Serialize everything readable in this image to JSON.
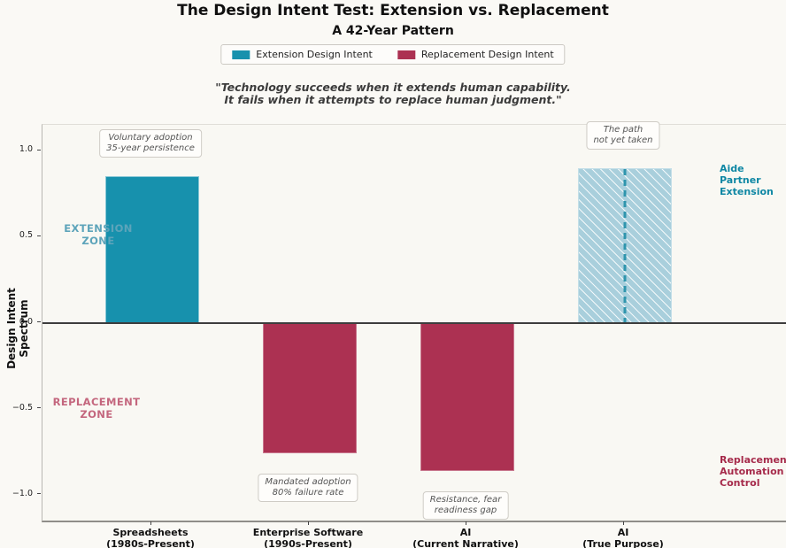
{
  "title": "The Design Intent Test: Extension vs. Replacement",
  "subtitle": "A 42-Year Pattern",
  "legend": {
    "extension": "Extension Design Intent",
    "replacement": "Replacement Design Intent"
  },
  "quote": {
    "line1": "\"Technology succeeds when it extends human capability.",
    "line2": "It fails when it attempts to replace human judgment.\""
  },
  "zones": {
    "extension": [
      "EXTENSION",
      "ZONE"
    ],
    "replacement": [
      "REPLACEMENT",
      "ZONE"
    ]
  },
  "right_labels": {
    "extension": [
      "Aide",
      "Partner",
      "Extension"
    ],
    "replacement": [
      "Replacement",
      "Automation",
      "Control"
    ]
  },
  "colors": {
    "extension": "#1791ad",
    "replacement": "#ac3152",
    "extension_projected_fill": "#a9cfdc",
    "zero_line": "#3d3d3d",
    "background": "#faf9f5"
  },
  "chart_data": {
    "type": "bar",
    "title": "The Design Intent Test: Extension vs. Replacement",
    "subtitle": "A 42-Year Pattern",
    "ylabel": "Design Intent Spectrum",
    "xlabel": "",
    "ylim": [
      -1.15,
      1.15
    ],
    "grid": false,
    "legend_position": "top-center",
    "yticks": [
      1.0,
      0.5,
      0.0,
      -0.5,
      -1.0
    ],
    "ytick_labels": [
      "1.0",
      "0.5",
      "0.0",
      "−0.5",
      "−1.0"
    ],
    "categories": [
      "Spreadsheets (1980s-Present)",
      "Enterprise Software (1990s-Present)",
      "AI (Current Narrative)",
      "AI (True Purpose)"
    ],
    "bars": [
      {
        "label": [
          "Spreadsheets",
          "(1980s-Present)"
        ],
        "value": 0.85,
        "series": "Extension Design Intent",
        "style": "extension"
      },
      {
        "label": [
          "Enterprise Software",
          "(1990s-Present)"
        ],
        "value": -0.75,
        "series": "Replacement Design Intent",
        "style": "replacement"
      },
      {
        "label": [
          "AI",
          "(Current Narrative)"
        ],
        "value": -0.85,
        "series": "Replacement Design Intent",
        "style": "replacement"
      },
      {
        "label": [
          "AI",
          "(True Purpose)"
        ],
        "value": 0.9,
        "series": "Extension Design Intent",
        "style": "extension-hatched"
      }
    ],
    "annotations": [
      {
        "lines": [
          "Voluntary adoption",
          "35-year persistence"
        ],
        "bar": 0,
        "side": "above"
      },
      {
        "lines": [
          "Mandated adoption",
          "80% failure rate"
        ],
        "bar": 1,
        "side": "below"
      },
      {
        "lines": [
          "Resistance, fear",
          "readiness gap"
        ],
        "bar": 2,
        "side": "below"
      },
      {
        "lines": [
          "The path",
          "not yet taken"
        ],
        "bar": 3,
        "side": "above"
      }
    ]
  }
}
